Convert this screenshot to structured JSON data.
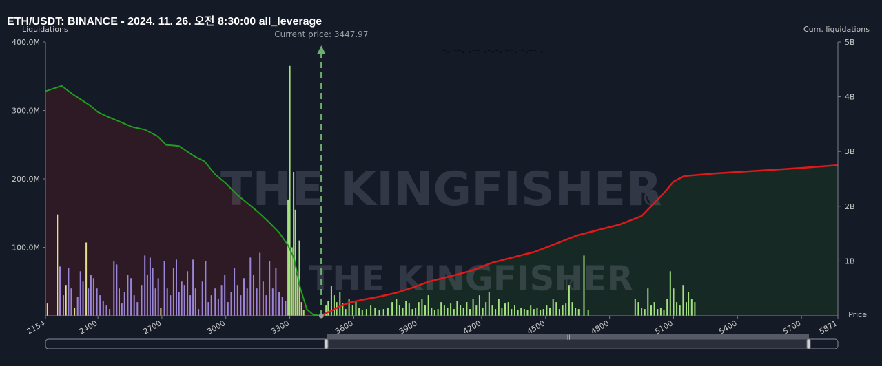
{
  "title": "ETH/USDT: BINANCE - 2024. 11. 26. 오전 8:30:00 all_leverage",
  "watermark": {
    "text": "THE KINGFISHER",
    "suffix": ".IO"
  },
  "legend_text": "-.  --.  .--  .-.-.  --.  -.--  .",
  "colors": {
    "background": "#151a27",
    "long_fill": "#2e1a24",
    "long_line": "#1f9d1f",
    "short_fill": "#172a25",
    "short_line": "#e01919",
    "bar_green": "#a3e27e",
    "bar_yellow": "#e0df8e",
    "bar_purple": "#9a86d8",
    "price_line": "#6fae6f",
    "axis_text": "#c8c8c8"
  },
  "chart_data": {
    "type": "bar",
    "xlabel": "Price",
    "ylabel": "Liquidations",
    "y2label": "Cum. liquidations",
    "xlim": [
      2154,
      5871
    ],
    "ylim": [
      0,
      400
    ],
    "y2lim": [
      0,
      5
    ],
    "x_ticks": [
      2154,
      2400,
      2700,
      3000,
      3300,
      3600,
      3900,
      4200,
      4500,
      4800,
      5100,
      5400,
      5700,
      5871
    ],
    "y_ticks": [
      "100.0M",
      "200.0M",
      "300.0M",
      "400.0M"
    ],
    "y_tick_values": [
      100,
      200,
      300,
      400
    ],
    "y2_ticks": [
      "1B",
      "2B",
      "3B",
      "4B",
      "5B"
    ],
    "y2_tick_values": [
      1,
      2,
      3,
      4,
      5
    ],
    "current_price": 3447.97,
    "current_price_label": "Current price: 3447.97",
    "cum_long": {
      "name": "",
      "points": [
        [
          2154,
          4.1
        ],
        [
          2230,
          4.2
        ],
        [
          2280,
          4.05
        ],
        [
          2320,
          3.95
        ],
        [
          2360,
          3.85
        ],
        [
          2400,
          3.72
        ],
        [
          2450,
          3.63
        ],
        [
          2500,
          3.55
        ],
        [
          2560,
          3.45
        ],
        [
          2620,
          3.4
        ],
        [
          2680,
          3.28
        ],
        [
          2720,
          3.12
        ],
        [
          2780,
          3.1
        ],
        [
          2850,
          2.92
        ],
        [
          2900,
          2.82
        ],
        [
          2950,
          2.58
        ],
        [
          3000,
          2.42
        ],
        [
          3050,
          2.22
        ],
        [
          3100,
          2.06
        ],
        [
          3150,
          1.9
        ],
        [
          3200,
          1.72
        ],
        [
          3250,
          1.52
        ],
        [
          3290,
          1.3
        ],
        [
          3320,
          1.05
        ],
        [
          3350,
          0.5
        ],
        [
          3380,
          0.12
        ],
        [
          3410,
          0.02
        ],
        [
          3448,
          0.0
        ]
      ]
    },
    "cum_short": {
      "name": "",
      "points": [
        [
          3448,
          0.0
        ],
        [
          3470,
          0.05
        ],
        [
          3500,
          0.1
        ],
        [
          3540,
          0.18
        ],
        [
          3580,
          0.24
        ],
        [
          3650,
          0.3
        ],
        [
          3720,
          0.35
        ],
        [
          3800,
          0.42
        ],
        [
          3880,
          0.52
        ],
        [
          3950,
          0.62
        ],
        [
          4050,
          0.72
        ],
        [
          4150,
          0.82
        ],
        [
          4250,
          0.97
        ],
        [
          4350,
          1.07
        ],
        [
          4450,
          1.17
        ],
        [
          4550,
          1.32
        ],
        [
          4650,
          1.47
        ],
        [
          4750,
          1.57
        ],
        [
          4850,
          1.67
        ],
        [
          4950,
          1.82
        ],
        [
          5050,
          2.22
        ],
        [
          5100,
          2.45
        ],
        [
          5150,
          2.55
        ],
        [
          5300,
          2.6
        ],
        [
          5500,
          2.65
        ],
        [
          5700,
          2.7
        ],
        [
          5871,
          2.75
        ]
      ]
    },
    "bars_long_liq": [
      {
        "x": 2163,
        "v": 18,
        "c": "yellow"
      },
      {
        "x": 2210,
        "v": 148,
        "c": "yellow"
      },
      {
        "x": 2222,
        "v": 72,
        "c": "purple"
      },
      {
        "x": 2238,
        "v": 30,
        "c": "purple"
      },
      {
        "x": 2250,
        "v": 45,
        "c": "yellow"
      },
      {
        "x": 2262,
        "v": 70,
        "c": "purple"
      },
      {
        "x": 2275,
        "v": 40,
        "c": "purple"
      },
      {
        "x": 2290,
        "v": 12,
        "c": "yellow"
      },
      {
        "x": 2305,
        "v": 28,
        "c": "purple"
      },
      {
        "x": 2318,
        "v": 65,
        "c": "purple"
      },
      {
        "x": 2330,
        "v": 50,
        "c": "purple"
      },
      {
        "x": 2345,
        "v": 107,
        "c": "yellow"
      },
      {
        "x": 2355,
        "v": 40,
        "c": "purple"
      },
      {
        "x": 2367,
        "v": 60,
        "c": "purple"
      },
      {
        "x": 2380,
        "v": 55,
        "c": "purple"
      },
      {
        "x": 2395,
        "v": 40,
        "c": "purple"
      },
      {
        "x": 2410,
        "v": 30,
        "c": "purple"
      },
      {
        "x": 2425,
        "v": 22,
        "c": "purple"
      },
      {
        "x": 2440,
        "v": 15,
        "c": "purple"
      },
      {
        "x": 2455,
        "v": 10,
        "c": "purple"
      },
      {
        "x": 2475,
        "v": 80,
        "c": "purple"
      },
      {
        "x": 2488,
        "v": 75,
        "c": "purple"
      },
      {
        "x": 2500,
        "v": 40,
        "c": "purple"
      },
      {
        "x": 2512,
        "v": 18,
        "c": "purple"
      },
      {
        "x": 2525,
        "v": 35,
        "c": "purple"
      },
      {
        "x": 2540,
        "v": 60,
        "c": "purple"
      },
      {
        "x": 2555,
        "v": 55,
        "c": "purple"
      },
      {
        "x": 2570,
        "v": 30,
        "c": "purple"
      },
      {
        "x": 2585,
        "v": 20,
        "c": "purple"
      },
      {
        "x": 2605,
        "v": 45,
        "c": "purple"
      },
      {
        "x": 2620,
        "v": 88,
        "c": "purple"
      },
      {
        "x": 2632,
        "v": 60,
        "c": "purple"
      },
      {
        "x": 2645,
        "v": 85,
        "c": "purple"
      },
      {
        "x": 2657,
        "v": 70,
        "c": "purple"
      },
      {
        "x": 2670,
        "v": 40,
        "c": "purple"
      },
      {
        "x": 2683,
        "v": 55,
        "c": "purple"
      },
      {
        "x": 2695,
        "v": 12,
        "c": "yellow"
      },
      {
        "x": 2712,
        "v": 80,
        "c": "purple"
      },
      {
        "x": 2725,
        "v": 40,
        "c": "purple"
      },
      {
        "x": 2740,
        "v": 30,
        "c": "purple"
      },
      {
        "x": 2755,
        "v": 70,
        "c": "purple"
      },
      {
        "x": 2768,
        "v": 82,
        "c": "purple"
      },
      {
        "x": 2780,
        "v": 35,
        "c": "purple"
      },
      {
        "x": 2793,
        "v": 50,
        "c": "purple"
      },
      {
        "x": 2806,
        "v": 45,
        "c": "purple"
      },
      {
        "x": 2820,
        "v": 65,
        "c": "purple"
      },
      {
        "x": 2833,
        "v": 30,
        "c": "purple"
      },
      {
        "x": 2846,
        "v": 82,
        "c": "purple"
      },
      {
        "x": 2858,
        "v": 40,
        "c": "purple"
      },
      {
        "x": 2872,
        "v": 10,
        "c": "purple"
      },
      {
        "x": 2890,
        "v": 50,
        "c": "purple"
      },
      {
        "x": 2905,
        "v": 80,
        "c": "purple"
      },
      {
        "x": 2918,
        "v": 20,
        "c": "purple"
      },
      {
        "x": 2932,
        "v": 30,
        "c": "purple"
      },
      {
        "x": 2950,
        "v": 40,
        "c": "purple"
      },
      {
        "x": 2965,
        "v": 25,
        "c": "purple"
      },
      {
        "x": 2980,
        "v": 45,
        "c": "purple"
      },
      {
        "x": 2995,
        "v": 60,
        "c": "purple"
      },
      {
        "x": 3010,
        "v": 20,
        "c": "purple"
      },
      {
        "x": 3025,
        "v": 35,
        "c": "purple"
      },
      {
        "x": 3040,
        "v": 70,
        "c": "purple"
      },
      {
        "x": 3055,
        "v": 45,
        "c": "purple"
      },
      {
        "x": 3070,
        "v": 30,
        "c": "purple"
      },
      {
        "x": 3085,
        "v": 55,
        "c": "purple"
      },
      {
        "x": 3100,
        "v": 40,
        "c": "purple"
      },
      {
        "x": 3115,
        "v": 85,
        "c": "purple"
      },
      {
        "x": 3130,
        "v": 60,
        "c": "purple"
      },
      {
        "x": 3145,
        "v": 40,
        "c": "purple"
      },
      {
        "x": 3160,
        "v": 92,
        "c": "purple"
      },
      {
        "x": 3175,
        "v": 50,
        "c": "purple"
      },
      {
        "x": 3190,
        "v": 30,
        "c": "purple"
      },
      {
        "x": 3205,
        "v": 80,
        "c": "purple"
      },
      {
        "x": 3220,
        "v": 40,
        "c": "purple"
      },
      {
        "x": 3235,
        "v": 70,
        "c": "purple"
      },
      {
        "x": 3250,
        "v": 35,
        "c": "purple"
      },
      {
        "x": 3265,
        "v": 28,
        "c": "purple"
      },
      {
        "x": 3280,
        "v": 22,
        "c": "purple"
      },
      {
        "x": 3292,
        "v": 170,
        "c": "green"
      },
      {
        "x": 3300,
        "v": 365,
        "c": "green"
      },
      {
        "x": 3310,
        "v": 100,
        "c": "green"
      },
      {
        "x": 3318,
        "v": 210,
        "c": "green"
      },
      {
        "x": 3326,
        "v": 155,
        "c": "green"
      },
      {
        "x": 3335,
        "v": 60,
        "c": "green"
      },
      {
        "x": 3345,
        "v": 110,
        "c": "green"
      },
      {
        "x": 3355,
        "v": 20,
        "c": "green"
      },
      {
        "x": 3365,
        "v": 8,
        "c": "green"
      }
    ],
    "bars_short_liq": [
      {
        "x": 3470,
        "v": 15,
        "c": "green"
      },
      {
        "x": 3480,
        "v": 22,
        "c": "green"
      },
      {
        "x": 3495,
        "v": 44,
        "c": "green"
      },
      {
        "x": 3508,
        "v": 30,
        "c": "green"
      },
      {
        "x": 3520,
        "v": 20,
        "c": "green"
      },
      {
        "x": 3535,
        "v": 35,
        "c": "green"
      },
      {
        "x": 3548,
        "v": 18,
        "c": "green"
      },
      {
        "x": 3562,
        "v": 10,
        "c": "green"
      },
      {
        "x": 3578,
        "v": 25,
        "c": "green"
      },
      {
        "x": 3595,
        "v": 15,
        "c": "green"
      },
      {
        "x": 3610,
        "v": 20,
        "c": "green"
      },
      {
        "x": 3625,
        "v": 12,
        "c": "green"
      },
      {
        "x": 3640,
        "v": 8,
        "c": "green"
      },
      {
        "x": 3660,
        "v": 10,
        "c": "green"
      },
      {
        "x": 3680,
        "v": 15,
        "c": "green"
      },
      {
        "x": 3700,
        "v": 12,
        "c": "green"
      },
      {
        "x": 3720,
        "v": 8,
        "c": "green"
      },
      {
        "x": 3740,
        "v": 10,
        "c": "green"
      },
      {
        "x": 3760,
        "v": 12,
        "c": "green"
      },
      {
        "x": 3780,
        "v": 20,
        "c": "green"
      },
      {
        "x": 3800,
        "v": 25,
        "c": "green"
      },
      {
        "x": 3815,
        "v": 15,
        "c": "green"
      },
      {
        "x": 3830,
        "v": 12,
        "c": "green"
      },
      {
        "x": 3845,
        "v": 22,
        "c": "green"
      },
      {
        "x": 3860,
        "v": 18,
        "c": "green"
      },
      {
        "x": 3875,
        "v": 10,
        "c": "green"
      },
      {
        "x": 3890,
        "v": 12,
        "c": "green"
      },
      {
        "x": 3905,
        "v": 20,
        "c": "green"
      },
      {
        "x": 3920,
        "v": 25,
        "c": "green"
      },
      {
        "x": 3935,
        "v": 15,
        "c": "green"
      },
      {
        "x": 3950,
        "v": 30,
        "c": "green"
      },
      {
        "x": 3965,
        "v": 12,
        "c": "green"
      },
      {
        "x": 3980,
        "v": 8,
        "c": "green"
      },
      {
        "x": 3995,
        "v": 10,
        "c": "green"
      },
      {
        "x": 4010,
        "v": 20,
        "c": "green"
      },
      {
        "x": 4025,
        "v": 15,
        "c": "green"
      },
      {
        "x": 4040,
        "v": 12,
        "c": "green"
      },
      {
        "x": 4055,
        "v": 18,
        "c": "green"
      },
      {
        "x": 4070,
        "v": 10,
        "c": "green"
      },
      {
        "x": 4085,
        "v": 22,
        "c": "green"
      },
      {
        "x": 4100,
        "v": 15,
        "c": "green"
      },
      {
        "x": 4115,
        "v": 12,
        "c": "green"
      },
      {
        "x": 4130,
        "v": 20,
        "c": "green"
      },
      {
        "x": 4145,
        "v": 10,
        "c": "green"
      },
      {
        "x": 4160,
        "v": 25,
        "c": "green"
      },
      {
        "x": 4175,
        "v": 15,
        "c": "green"
      },
      {
        "x": 4190,
        "v": 30,
        "c": "green"
      },
      {
        "x": 4205,
        "v": 12,
        "c": "green"
      },
      {
        "x": 4220,
        "v": 20,
        "c": "green"
      },
      {
        "x": 4235,
        "v": 35,
        "c": "green"
      },
      {
        "x": 4250,
        "v": 15,
        "c": "green"
      },
      {
        "x": 4265,
        "v": 10,
        "c": "green"
      },
      {
        "x": 4280,
        "v": 25,
        "c": "green"
      },
      {
        "x": 4295,
        "v": 12,
        "c": "green"
      },
      {
        "x": 4310,
        "v": 18,
        "c": "green"
      },
      {
        "x": 4325,
        "v": 20,
        "c": "green"
      },
      {
        "x": 4340,
        "v": 10,
        "c": "green"
      },
      {
        "x": 4355,
        "v": 15,
        "c": "green"
      },
      {
        "x": 4370,
        "v": 8,
        "c": "green"
      },
      {
        "x": 4385,
        "v": 12,
        "c": "green"
      },
      {
        "x": 4400,
        "v": 10,
        "c": "green"
      },
      {
        "x": 4415,
        "v": 8,
        "c": "green"
      },
      {
        "x": 4430,
        "v": 15,
        "c": "green"
      },
      {
        "x": 4445,
        "v": 10,
        "c": "green"
      },
      {
        "x": 4460,
        "v": 12,
        "c": "green"
      },
      {
        "x": 4475,
        "v": 8,
        "c": "green"
      },
      {
        "x": 4490,
        "v": 10,
        "c": "green"
      },
      {
        "x": 4505,
        "v": 15,
        "c": "green"
      },
      {
        "x": 4520,
        "v": 12,
        "c": "green"
      },
      {
        "x": 4535,
        "v": 25,
        "c": "green"
      },
      {
        "x": 4550,
        "v": 20,
        "c": "green"
      },
      {
        "x": 4565,
        "v": 10,
        "c": "green"
      },
      {
        "x": 4580,
        "v": 15,
        "c": "green"
      },
      {
        "x": 4595,
        "v": 18,
        "c": "green"
      },
      {
        "x": 4610,
        "v": 45,
        "c": "green"
      },
      {
        "x": 4625,
        "v": 20,
        "c": "green"
      },
      {
        "x": 4640,
        "v": 12,
        "c": "green"
      },
      {
        "x": 4655,
        "v": 10,
        "c": "green"
      },
      {
        "x": 4680,
        "v": 88,
        "c": "green"
      },
      {
        "x": 4700,
        "v": 8,
        "c": "green"
      },
      {
        "x": 4920,
        "v": 25,
        "c": "green"
      },
      {
        "x": 4935,
        "v": 20,
        "c": "green"
      },
      {
        "x": 4950,
        "v": 12,
        "c": "green"
      },
      {
        "x": 4965,
        "v": 10,
        "c": "green"
      },
      {
        "x": 4980,
        "v": 40,
        "c": "green"
      },
      {
        "x": 4995,
        "v": 15,
        "c": "green"
      },
      {
        "x": 5010,
        "v": 20,
        "c": "green"
      },
      {
        "x": 5025,
        "v": 10,
        "c": "green"
      },
      {
        "x": 5040,
        "v": 12,
        "c": "green"
      },
      {
        "x": 5055,
        "v": 8,
        "c": "green"
      },
      {
        "x": 5070,
        "v": 25,
        "c": "green"
      },
      {
        "x": 5085,
        "v": 65,
        "c": "green"
      },
      {
        "x": 5100,
        "v": 40,
        "c": "green"
      },
      {
        "x": 5115,
        "v": 20,
        "c": "green"
      },
      {
        "x": 5130,
        "v": 15,
        "c": "green"
      },
      {
        "x": 5145,
        "v": 45,
        "c": "green"
      },
      {
        "x": 5160,
        "v": 20,
        "c": "green"
      },
      {
        "x": 5170,
        "v": 35,
        "c": "green"
      },
      {
        "x": 5185,
        "v": 25,
        "c": "green"
      },
      {
        "x": 5200,
        "v": 20,
        "c": "green"
      }
    ]
  }
}
